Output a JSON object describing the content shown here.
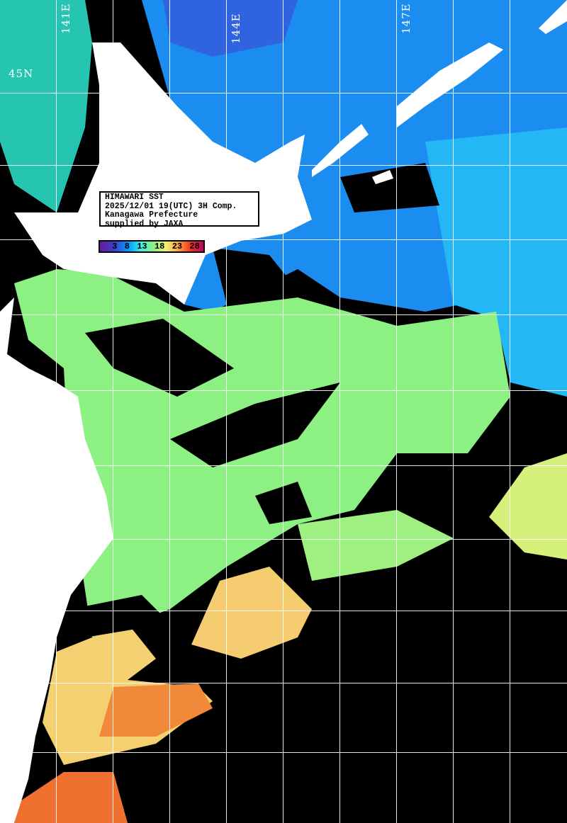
{
  "map": {
    "title": "HIMAWARI SST",
    "datetime": "2025/12/01 19(UTC) 3H Comp.",
    "region": "Kanagawa Prefecture",
    "credit": "supplied by JAXA",
    "lat_labels": [
      "45N"
    ],
    "lon_labels": [
      "141E",
      "144E",
      "147E"
    ],
    "color_scale": {
      "unit_ticks": [
        "3",
        "8",
        "13",
        "18",
        "23",
        "28"
      ],
      "colors": [
        "#6a1a9a",
        "#3a40d0",
        "#00a0ff",
        "#40f0e0",
        "#90f080",
        "#f0f070",
        "#ffa040",
        "#f03020",
        "#c00060"
      ]
    },
    "colors": {
      "land": "#ffffff",
      "no_data": "#000000",
      "grid": "#ffffff"
    }
  }
}
